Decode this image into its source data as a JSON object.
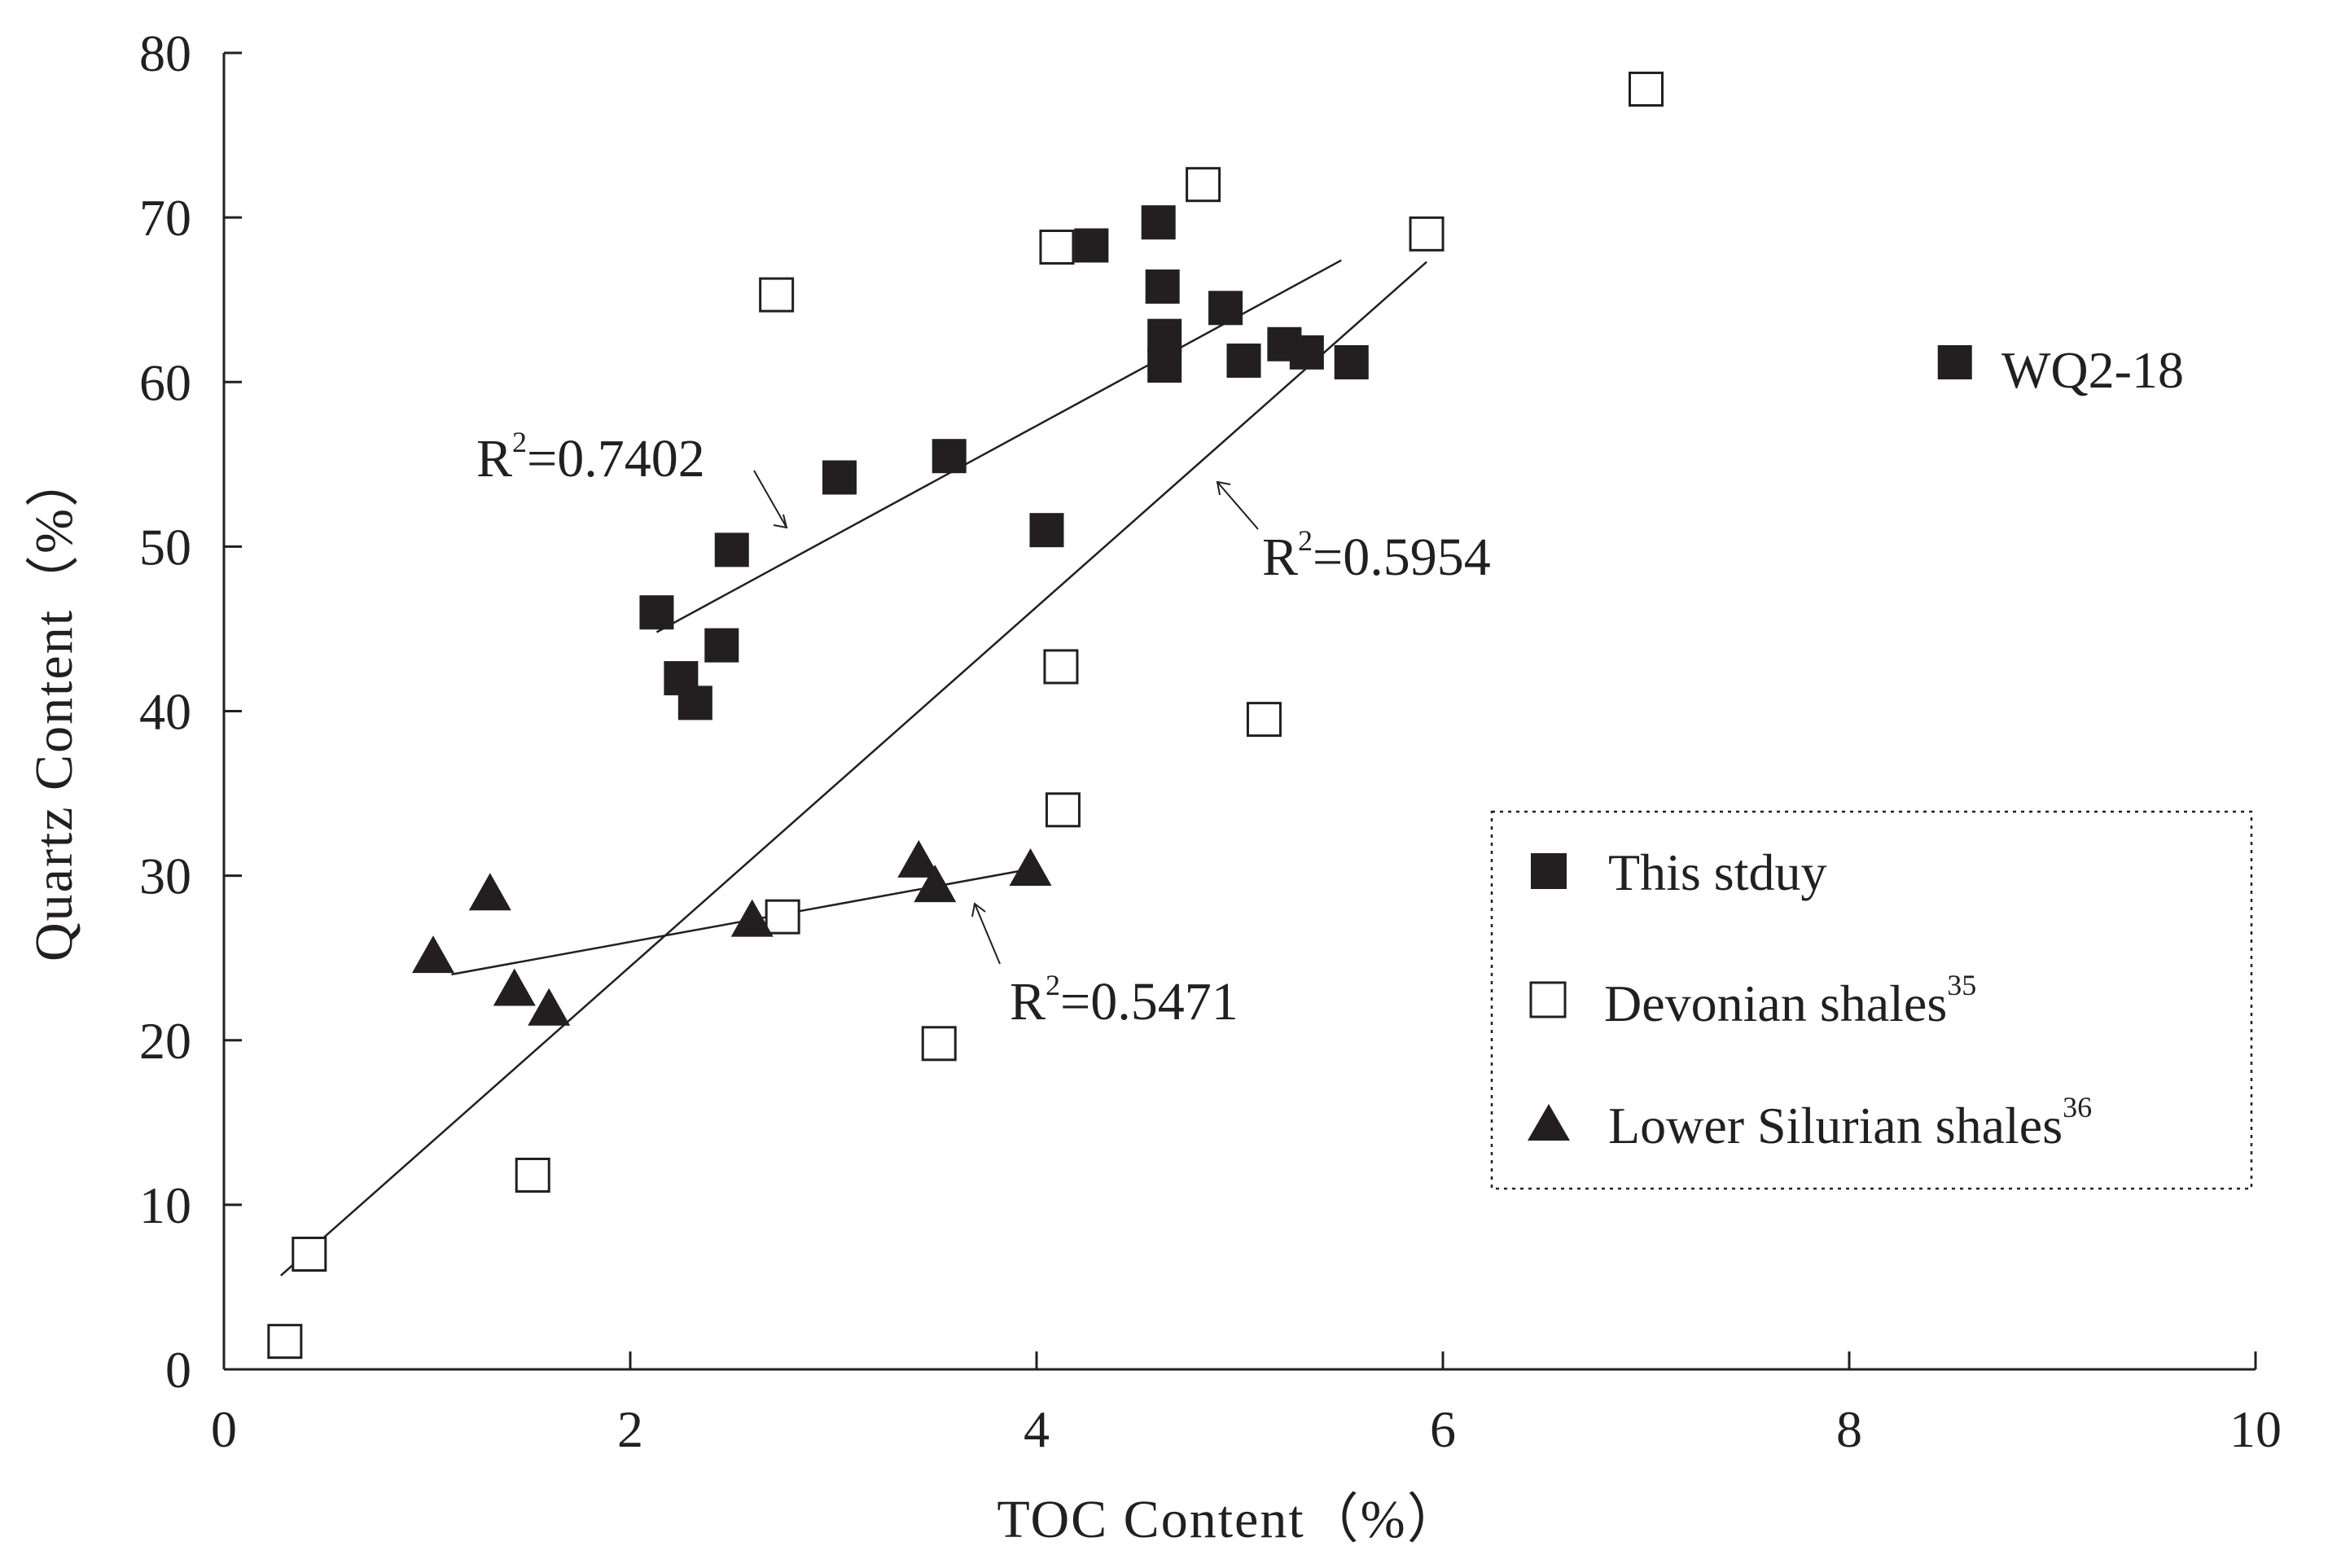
{
  "chart_data": {
    "type": "scatter",
    "title": "",
    "xlabel": "TOC  Content（%）",
    "ylabel": "Quartz  Content（%）",
    "xlim": [
      0,
      10
    ],
    "ylim": [
      0,
      80
    ],
    "x_ticks": [
      "0",
      "2",
      "4",
      "6",
      "8",
      "10"
    ],
    "y_ticks": [
      "0",
      "10",
      "20",
      "30",
      "40",
      "50",
      "60",
      "70",
      "80"
    ],
    "grid": false,
    "legend_position": "bottom-right",
    "series": [
      {
        "name": "This stduy",
        "marker": "filled-square",
        "color": "#231f20",
        "points": [
          [
            2.13,
            46.0
          ],
          [
            2.25,
            42.0
          ],
          [
            2.32,
            40.5
          ],
          [
            2.45,
            44.0
          ],
          [
            2.5,
            49.8
          ],
          [
            3.03,
            54.2
          ],
          [
            3.57,
            55.5
          ],
          [
            4.05,
            51.0
          ],
          [
            4.27,
            68.3
          ],
          [
            4.6,
            69.7
          ],
          [
            4.62,
            65.8
          ],
          [
            4.63,
            62.8
          ],
          [
            4.63,
            61.0
          ],
          [
            4.93,
            64.5
          ],
          [
            5.02,
            61.3
          ],
          [
            5.22,
            62.3
          ],
          [
            5.33,
            61.8
          ],
          [
            5.55,
            61.2
          ]
        ],
        "trendline": {
          "x": [
            2.13,
            5.5
          ],
          "y": [
            44.8,
            67.4
          ],
          "r2_label": "R2=0.7402"
        }
      },
      {
        "name": "Devonian shales",
        "name_sup": "35",
        "marker": "open-square",
        "color": "#231f20",
        "points": [
          [
            0.3,
            1.7
          ],
          [
            0.42,
            7.0
          ],
          [
            1.52,
            11.8
          ],
          [
            2.72,
            65.3
          ],
          [
            2.75,
            27.5
          ],
          [
            3.52,
            19.8
          ],
          [
            4.1,
            68.2
          ],
          [
            4.12,
            42.7
          ],
          [
            4.13,
            34.0
          ],
          [
            4.82,
            72.0
          ],
          [
            5.12,
            39.5
          ],
          [
            5.92,
            69.0
          ],
          [
            7.0,
            77.8
          ]
        ],
        "trendline": {
          "x": [
            0.28,
            5.92
          ],
          "y": [
            5.7,
            67.3
          ],
          "r2_label": "R2=0.5954"
        }
      },
      {
        "name": "Lower Silurian shales",
        "name_sup": "36",
        "marker": "filled-triangle",
        "color": "#231f20",
        "points": [
          [
            1.03,
            25.0
          ],
          [
            1.31,
            28.8
          ],
          [
            1.43,
            23.0
          ],
          [
            1.6,
            21.8
          ],
          [
            2.6,
            27.2
          ],
          [
            3.42,
            30.8
          ],
          [
            3.5,
            29.3
          ],
          [
            3.97,
            30.3
          ]
        ],
        "trendline": {
          "x": [
            1.12,
            3.97
          ],
          "y": [
            24.0,
            30.4
          ],
          "r2_label": "R2=0.5471"
        }
      }
    ],
    "annotations": [
      {
        "label": "WQ2-18",
        "series": "This stduy",
        "x": 8.52,
        "y": 61.2
      }
    ]
  }
}
